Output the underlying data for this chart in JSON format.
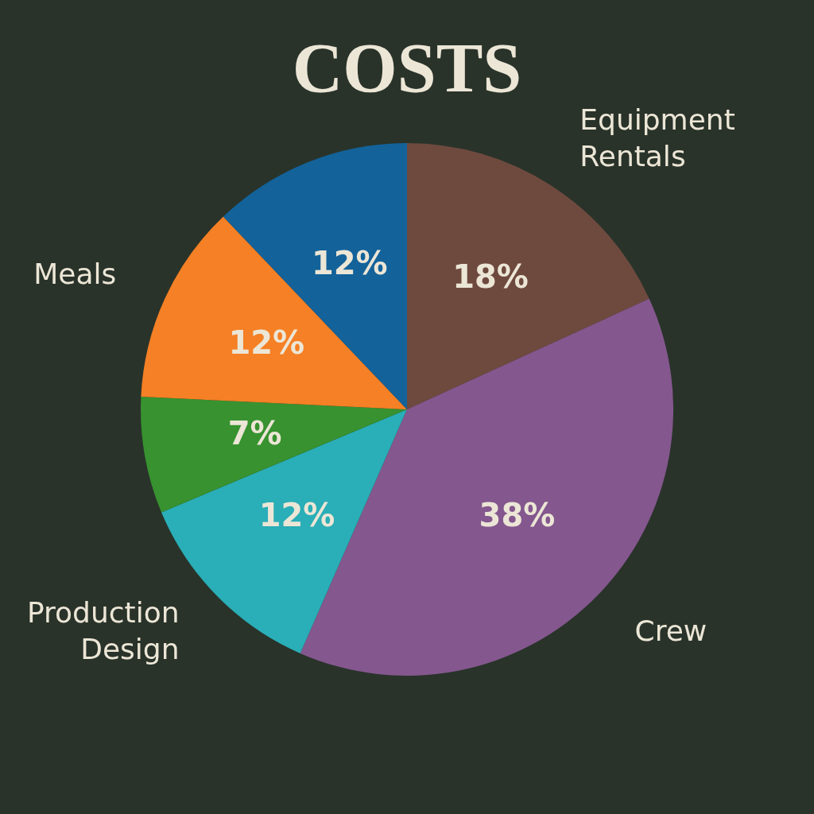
{
  "chart_data": {
    "type": "pie",
    "title": "COSTS",
    "categories": [
      "Equipment Rentals",
      "Crew",
      "Production Design",
      null,
      "Meals",
      null
    ],
    "values": [
      18,
      38,
      12,
      7,
      12,
      12
    ],
    "colors": [
      "#6e4a3e",
      "#84578e",
      "#2aaeb7",
      "#37922f",
      "#f58025",
      "#13629a"
    ],
    "value_labels": [
      "18%",
      "38%",
      "12%",
      "7%",
      "12%",
      "12%"
    ],
    "legend": false
  }
}
